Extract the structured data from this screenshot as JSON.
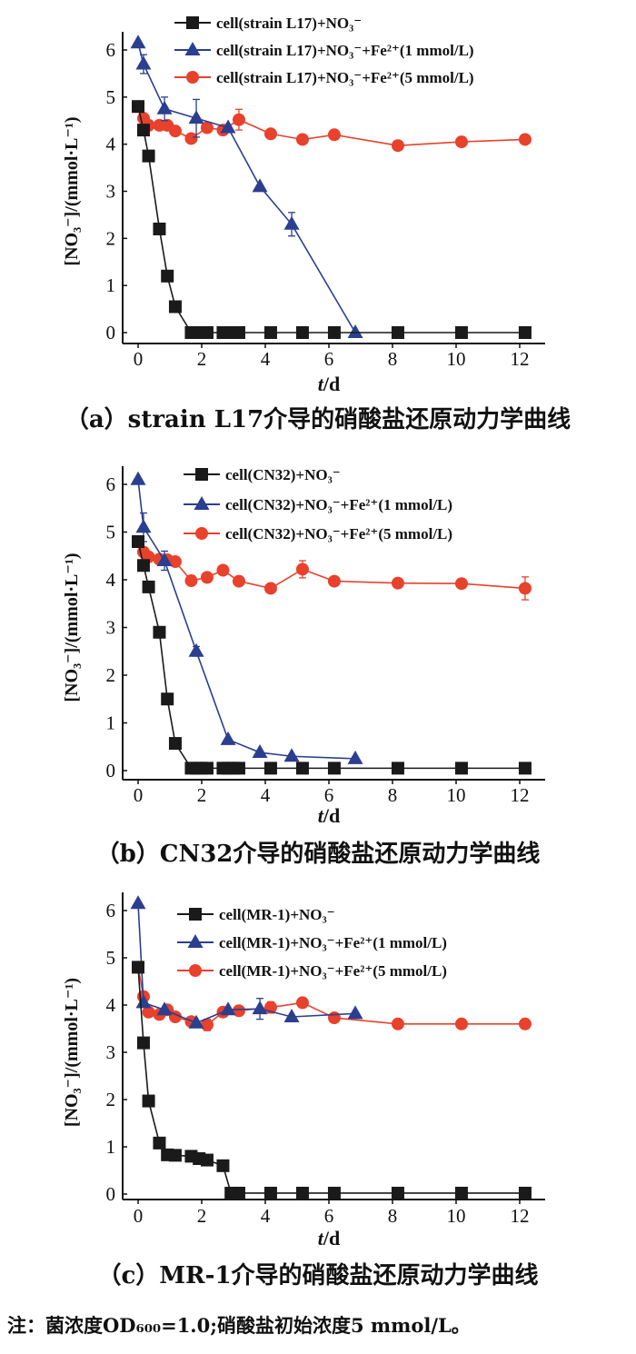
{
  "chart_data": [
    {
      "type": "line",
      "caption": "（a）strain L17介导的硝酸盐还原动力学曲线",
      "xlabel_italic": "t",
      "xlabel_rest": "/d",
      "ylabel": "[NO₃⁻]/(mmol·L⁻¹)",
      "xlim": [
        0,
        12.5
      ],
      "ylim": [
        0,
        6.3
      ],
      "xticks": [
        0,
        2,
        4,
        6,
        8,
        10,
        12
      ],
      "yticks": [
        0,
        1,
        2,
        3,
        4,
        5,
        6
      ],
      "legend_position": "top",
      "series": [
        {
          "name": "cell(strain L17)+NO₃⁻",
          "color": "#1a1a1a",
          "marker": "square",
          "x": [
            0,
            0.17,
            0.33,
            0.67,
            0.92,
            1.17,
            1.67,
            1.83,
            2.0,
            2.17,
            2.67,
            2.83,
            3.0,
            3.17,
            4.17,
            5.17,
            6.17,
            8.17,
            10.17,
            12.17
          ],
          "y": [
            4.8,
            4.3,
            3.75,
            2.2,
            1.2,
            0.55,
            0,
            0,
            0,
            0,
            0,
            0,
            0,
            0,
            0,
            0,
            0,
            0,
            0,
            0
          ]
        },
        {
          "name": "cell(strain L17)+NO₃⁻+Fe²⁺(1 mmol/L)",
          "color": "#2b3f8f",
          "marker": "triangle",
          "x": [
            0,
            0.17,
            0.83,
            1.83,
            2.83,
            3.83,
            4.83,
            6.83
          ],
          "y": [
            6.15,
            5.7,
            4.75,
            4.55,
            4.35,
            3.1,
            2.3,
            0
          ],
          "yerr": [
            0,
            0.2,
            0.25,
            0.4,
            0,
            0,
            0.25,
            0
          ]
        },
        {
          "name": "cell(strain L17)+NO₃⁻+Fe²⁺(5 mmol/L)",
          "color": "#e8412c",
          "marker": "circle",
          "x": [
            0,
            0.17,
            0.33,
            0.67,
            0.92,
            1.17,
            1.67,
            2.17,
            2.67,
            3.17,
            4.17,
            5.17,
            6.17,
            8.17,
            10.17,
            12.17
          ],
          "y": [
            4.8,
            4.55,
            4.4,
            4.4,
            4.4,
            4.28,
            4.12,
            4.35,
            4.3,
            4.52,
            4.22,
            4.1,
            4.2,
            3.97,
            4.05,
            4.1
          ],
          "yerr": [
            0,
            0,
            0,
            0,
            0,
            0,
            0,
            0,
            0,
            0.22,
            0,
            0,
            0,
            0,
            0,
            0
          ]
        }
      ]
    },
    {
      "type": "line",
      "caption": "（b）CN32介导的硝酸盐还原动力学曲线",
      "xlabel_italic": "t",
      "xlabel_rest": "/d",
      "ylabel": "[NO₃⁻]/(mmol·L⁻¹)",
      "xlim": [
        0,
        12.5
      ],
      "ylim": [
        0,
        6.3
      ],
      "xticks": [
        0,
        2,
        4,
        6,
        8,
        10,
        12
      ],
      "yticks": [
        0,
        1,
        2,
        3,
        4,
        5,
        6
      ],
      "legend_position": "top",
      "series": [
        {
          "name": "cell(CN32)+NO₃⁻",
          "color": "#1a1a1a",
          "marker": "square",
          "x": [
            0,
            0.17,
            0.33,
            0.67,
            0.92,
            1.17,
            1.67,
            1.83,
            2.0,
            2.17,
            2.67,
            2.83,
            3.0,
            3.17,
            4.17,
            5.17,
            6.17,
            8.17,
            10.17,
            12.17
          ],
          "y": [
            4.8,
            4.3,
            3.85,
            2.9,
            1.5,
            0.57,
            0.05,
            0.05,
            0.05,
            0.05,
            0.05,
            0.05,
            0.05,
            0.05,
            0.05,
            0.05,
            0.05,
            0.05,
            0.05,
            0.05
          ]
        },
        {
          "name": "cell(CN32)+NO₃⁻+Fe²⁺(1 mmol/L)",
          "color": "#2b3f8f",
          "marker": "triangle",
          "x": [
            0,
            0.17,
            0.83,
            1.83,
            2.83,
            3.83,
            4.83,
            6.83
          ],
          "y": [
            6.1,
            5.1,
            4.4,
            2.5,
            0.65,
            0.38,
            0.3,
            0.25
          ],
          "yerr": [
            0,
            0.3,
            0.2,
            0.1,
            0,
            0,
            0,
            0
          ]
        },
        {
          "name": "cell(CN32)+NO₃⁻+Fe²⁺(5 mmol/L)",
          "color": "#e8412c",
          "marker": "circle",
          "x": [
            0,
            0.17,
            0.33,
            0.67,
            0.92,
            1.17,
            1.67,
            2.17,
            2.67,
            3.17,
            4.17,
            5.17,
            6.17,
            8.17,
            10.17,
            12.17
          ],
          "y": [
            4.8,
            4.58,
            4.48,
            4.43,
            4.42,
            4.38,
            3.98,
            4.05,
            4.2,
            3.97,
            3.82,
            4.22,
            3.97,
            3.93,
            3.92,
            3.82
          ],
          "yerr": [
            0,
            0,
            0,
            0,
            0,
            0,
            0,
            0,
            0,
            0,
            0,
            0.18,
            0,
            0,
            0,
            0.24
          ]
        }
      ]
    },
    {
      "type": "line",
      "caption": "（c）MR-1介导的硝酸盐还原动力学曲线",
      "xlabel_italic": "t",
      "xlabel_rest": "/d",
      "ylabel": "[NO₃⁻]/(mmol·L⁻¹)",
      "xlim": [
        0,
        12.5
      ],
      "ylim": [
        0,
        6.3
      ],
      "xticks": [
        0,
        2,
        4,
        6,
        8,
        10,
        12
      ],
      "yticks": [
        0,
        1,
        2,
        3,
        4,
        5,
        6
      ],
      "legend_position": "top",
      "series": [
        {
          "name": "cell(MR-1)+NO₃⁻",
          "color": "#1a1a1a",
          "marker": "square",
          "x": [
            0,
            0.17,
            0.33,
            0.67,
            0.92,
            1.17,
            1.67,
            1.92,
            2.17,
            2.67,
            2.92,
            3.17,
            4.17,
            5.17,
            6.17,
            8.17,
            10.17,
            12.17
          ],
          "y": [
            4.8,
            3.2,
            1.97,
            1.08,
            0.83,
            0.82,
            0.8,
            0.75,
            0.72,
            0.6,
            0.02,
            0.02,
            0.02,
            0.02,
            0.02,
            0.02,
            0.02,
            0.02
          ]
        },
        {
          "name": "cell(MR-1)+NO₃⁻+Fe²⁺(1 mmol/L)",
          "color": "#2b3f8f",
          "marker": "triangle",
          "x": [
            0,
            0.17,
            0.83,
            1.83,
            2.83,
            3.83,
            4.83,
            6.83
          ],
          "y": [
            6.15,
            4.05,
            3.9,
            3.62,
            3.9,
            3.92,
            3.75,
            3.82
          ],
          "yerr": [
            0,
            0,
            0,
            0,
            0,
            0.22,
            0,
            0
          ]
        },
        {
          "name": "cell(MR-1)+NO₃⁻+Fe²⁺(5 mmol/L)",
          "color": "#e8412c",
          "marker": "circle",
          "x": [
            0,
            0.17,
            0.33,
            0.67,
            0.92,
            1.17,
            1.67,
            2.17,
            2.67,
            3.17,
            4.17,
            5.17,
            6.17,
            8.17,
            10.17,
            12.17
          ],
          "y": [
            4.8,
            4.18,
            3.85,
            3.8,
            3.9,
            3.75,
            3.65,
            3.58,
            3.85,
            3.88,
            3.95,
            4.05,
            3.73,
            3.6,
            3.6,
            3.6
          ],
          "yerr": [
            0,
            0,
            0,
            0,
            0,
            0,
            0,
            0.12,
            0,
            0,
            0.12,
            0,
            0,
            0,
            0,
            0
          ]
        }
      ]
    }
  ],
  "note": "注：菌浓度OD₆₀₀=1.0;硝酸盐初始浓度5 mmol/L。"
}
